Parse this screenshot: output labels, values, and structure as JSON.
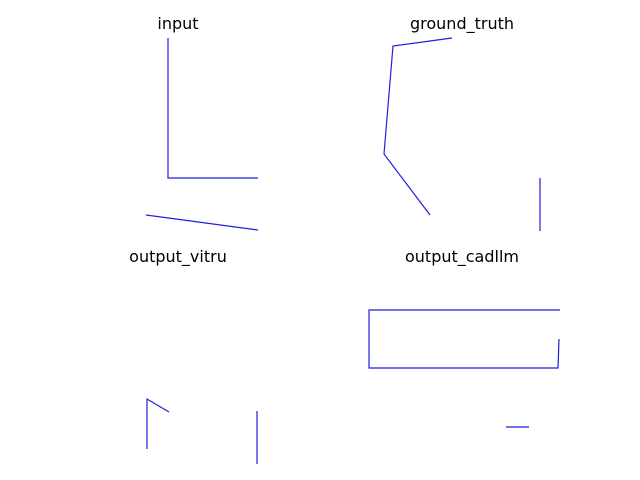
{
  "figure": {
    "line_color": "#1f1fe0",
    "panels": [
      {
        "title": "input",
        "segments": [
          [
            [
              168,
              38
            ],
            [
              168,
              178
            ],
            [
              258,
              178
            ]
          ],
          [
            [
              146,
              215
            ],
            [
              258,
              230
            ]
          ]
        ]
      },
      {
        "title": "ground_truth",
        "segments": [
          [
            [
              452,
              38
            ],
            [
              393,
              46
            ],
            [
              384,
              154
            ],
            [
              430,
              215
            ]
          ],
          [
            [
              540,
              178
            ],
            [
              540,
              231
            ]
          ]
        ]
      },
      {
        "title": "output_vitru",
        "segments": [
          [
            [
              147,
              449
            ],
            [
              147,
              399
            ],
            [
              169,
              412
            ]
          ],
          [
            [
              257,
              411
            ],
            [
              257,
              464
            ]
          ]
        ]
      },
      {
        "title": "output_cadllm",
        "segments": [
          [
            [
              560,
              310
            ],
            [
              369,
              310
            ],
            [
              369,
              368
            ],
            [
              558,
              368
            ],
            [
              559,
              339
            ]
          ],
          [
            [
              506,
              427
            ],
            [
              529,
              427
            ]
          ]
        ]
      }
    ]
  }
}
